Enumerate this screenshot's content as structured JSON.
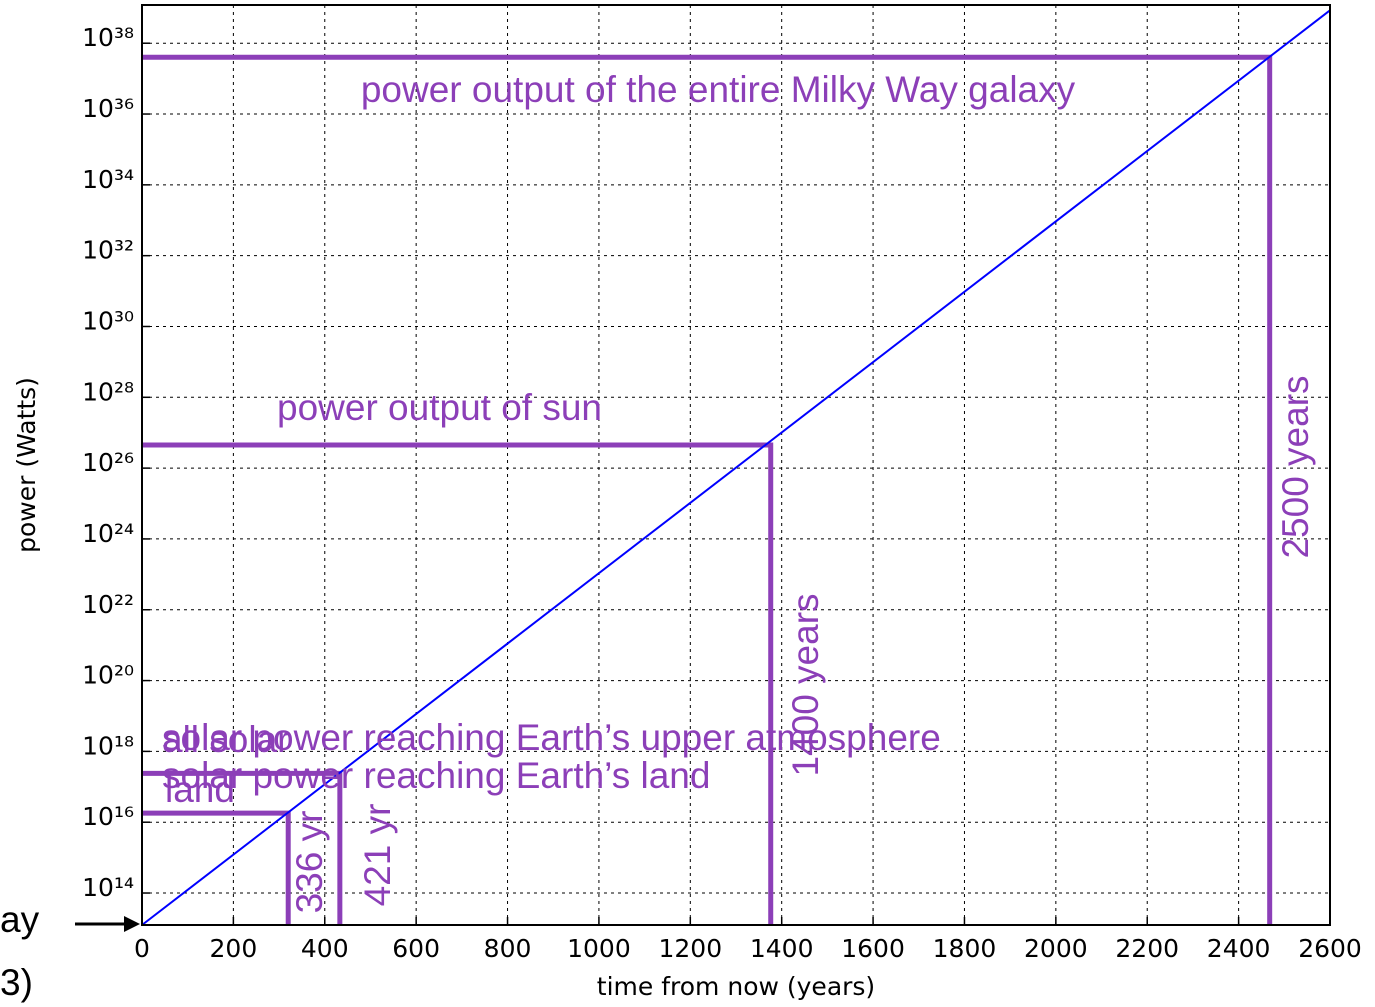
{
  "chart_data": {
    "type": "line",
    "log_y": true,
    "grid": true,
    "xlabel": "time from now (years)",
    "ylabel": "power (Watts)",
    "xlim": [
      0,
      2600
    ],
    "xticks": [
      0,
      200,
      400,
      600,
      800,
      1000,
      1200,
      1400,
      1600,
      1800,
      2000,
      2200,
      2400,
      2600
    ],
    "ylim": [
      12500000000000.0,
      1.2e+39
    ],
    "yticks": [
      {
        "value": 100000000000000.0,
        "label": "10¹⁴"
      },
      {
        "value": 1e+16,
        "label": "10¹⁶"
      },
      {
        "value": 1e+18,
        "label": "10¹⁸"
      },
      {
        "value": 1e+20,
        "label": "10²⁰"
      },
      {
        "value": 1e+22,
        "label": "10²²"
      },
      {
        "value": 1e+24,
        "label": "10²⁴"
      },
      {
        "value": 1e+26,
        "label": "10²⁶"
      },
      {
        "value": 1e+28,
        "label": "10²⁸"
      },
      {
        "value": 1e+30,
        "label": "10³⁰"
      },
      {
        "value": 1e+32,
        "label": "10³²"
      },
      {
        "value": 1e+34,
        "label": "10³⁴"
      },
      {
        "value": 1e+36,
        "label": "10³⁶"
      },
      {
        "value": 1e+38,
        "label": "10³⁸"
      }
    ],
    "x": [
      0,
      2600
    ],
    "series": [
      {
        "color": "#0000ff",
        "values": [
          12500000000000.0,
          8.5e+38
        ]
      }
    ],
    "reference_color": "#8c3fb8",
    "references": [
      {
        "value": 4e+37,
        "year": 2468
      },
      {
        "value": 4.5e+26,
        "year": 1376
      },
      {
        "value": 2.4e+17,
        "year": 433
      },
      {
        "value": 1.8e+16,
        "year": 320
      }
    ],
    "annotations": [
      "power output of the entire Milky Way galaxy",
      "power output of sun",
      "all solar",
      "solar power reaching Earth’s upper atmosphere",
      "land",
      "solar power reaching Earth’s land",
      "336 yr",
      "421 yr",
      "1400 years",
      "2500 years",
      "ay",
      "3)"
    ]
  }
}
